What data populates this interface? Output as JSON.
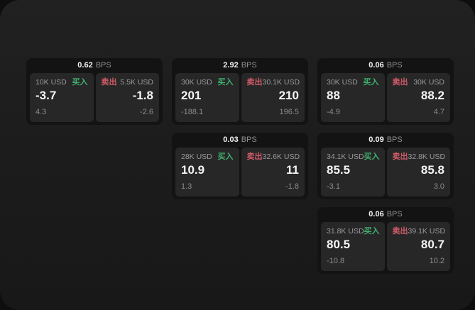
{
  "colors": {
    "buy_green": "#3faf6e",
    "sell_red": "#d15b69"
  },
  "cards": [
    {
      "bps_value": "0.62",
      "bps_unit": "BPS",
      "buy": {
        "amount": "10K USD",
        "side_label": "买入",
        "value": "-3.7",
        "sub_value": "4.3"
      },
      "sell": {
        "amount": "5.5K USD",
        "side_label": "卖出",
        "value": "-1.8",
        "sub_value": "-2.6"
      }
    },
    {
      "bps_value": "2.92",
      "bps_unit": "BPS",
      "buy": {
        "amount": "30K USD",
        "side_label": "买入",
        "value": "201",
        "sub_value": "-188.1"
      },
      "sell": {
        "amount": "30.1K USD",
        "side_label": "卖出",
        "value": "210",
        "sub_value": "196.5"
      }
    },
    {
      "bps_value": "0.06",
      "bps_unit": "BPS",
      "buy": {
        "amount": "30K USD",
        "side_label": "买入",
        "value": "88",
        "sub_value": "-4.9"
      },
      "sell": {
        "amount": "30K USD",
        "side_label": "卖出",
        "value": "88.2",
        "sub_value": "4.7"
      }
    },
    {
      "bps_value": "0.03",
      "bps_unit": "BPS",
      "buy": {
        "amount": "28K USD",
        "side_label": "买入",
        "value": "10.9",
        "sub_value": "1.3"
      },
      "sell": {
        "amount": "32.6K USD",
        "side_label": "卖出",
        "value": "11",
        "sub_value": "-1.8"
      }
    },
    {
      "bps_value": "0.09",
      "bps_unit": "BPS",
      "buy": {
        "amount": "34.1K USD",
        "side_label": "买入",
        "value": "85.5",
        "sub_value": "-3.1"
      },
      "sell": {
        "amount": "32.8K USD",
        "side_label": "卖出",
        "value": "85.8",
        "sub_value": "3.0"
      }
    },
    {
      "bps_value": "0.06",
      "bps_unit": "BPS",
      "buy": {
        "amount": "31.8K USD",
        "side_label": "买入",
        "value": "80.5",
        "sub_value": "-10.8"
      },
      "sell": {
        "amount": "39.1K USD",
        "side_label": "卖出",
        "value": "80.7",
        "sub_value": "10.2"
      }
    }
  ]
}
